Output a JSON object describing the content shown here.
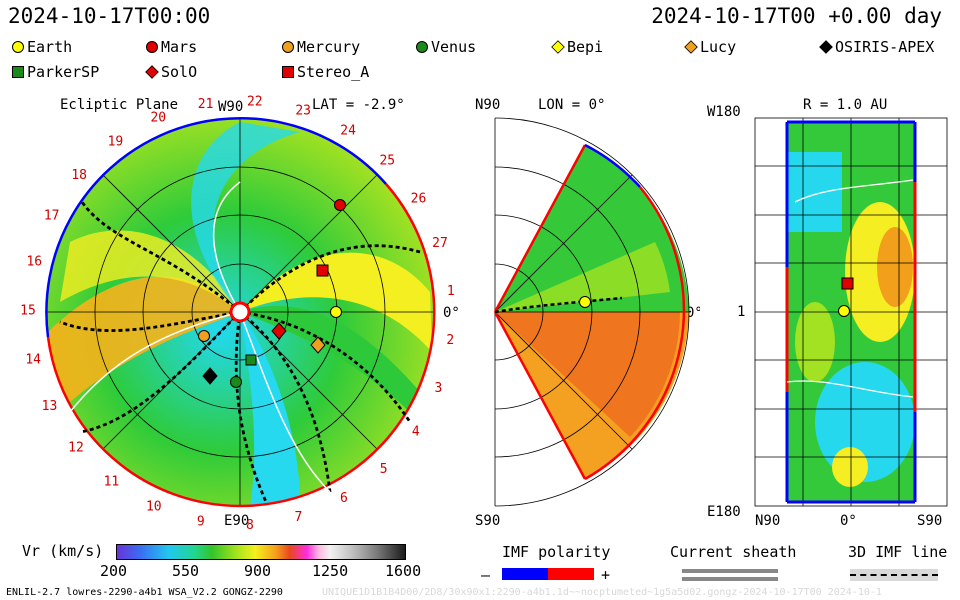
{
  "header": {
    "left_time": "2024-10-17T00:00",
    "right_time": "2024-10-17T00 +0.00 day"
  },
  "legend": [
    {
      "label": "Earth",
      "shape": "circle",
      "color": "#ffff00"
    },
    {
      "label": "Mars",
      "shape": "circle",
      "color": "#e00000"
    },
    {
      "label": "Mercury",
      "shape": "circle",
      "color": "#f0a020"
    },
    {
      "label": "Venus",
      "shape": "circle",
      "color": "#1a8a1a"
    },
    {
      "label": "Bepi",
      "shape": "diamond",
      "color": "#ffff00"
    },
    {
      "label": "Lucy",
      "shape": "diamond",
      "color": "#f0a020"
    },
    {
      "label": "OSIRIS-APEX",
      "shape": "diamond",
      "color": "#000000"
    },
    {
      "label": "ParkerSP",
      "shape": "square",
      "color": "#1a8a1a"
    },
    {
      "label": "SolO",
      "shape": "diamond",
      "color": "#e00000"
    },
    {
      "label": "Stereo_A",
      "shape": "square",
      "color": "#e00000"
    }
  ],
  "ecliptic": {
    "title": "Ecliptic Plane",
    "lat_label": "LAT = -2.9°",
    "top_label": "W90",
    "bottom_label": "E90",
    "right_label": "0°",
    "carrington": [
      "1",
      "2",
      "3",
      "4",
      "5",
      "6",
      "7",
      "8",
      "9",
      "10",
      "11",
      "12",
      "13",
      "14",
      "15",
      "16",
      "17",
      "18",
      "19",
      "20",
      "21",
      "22",
      "23",
      "24",
      "25",
      "26",
      "27"
    ]
  },
  "meridional": {
    "top_label": "N90",
    "bottom_label": "S90",
    "lon_label": "LON = 0°",
    "right_label": "0°"
  },
  "lonlat": {
    "title": "R = 1.0 AU",
    "top_left": "W180",
    "bottom_left": "E180",
    "mid_left": "1",
    "x_left": "N90",
    "x_mid": "0°",
    "x_right": "S90"
  },
  "colorbar": {
    "label": "Vr (km/s)",
    "ticks": [
      "200",
      "550",
      "900",
      "1250",
      "1600"
    ]
  },
  "imf": {
    "title": "IMF polarity",
    "minus": "–",
    "plus": "+",
    "neg_color": "#0000ff",
    "pos_color": "#ff0000"
  },
  "sheath": {
    "title": "Current sheath"
  },
  "imfline": {
    "title": "3D IMF line"
  },
  "footer": {
    "left": "ENLIL-2.7 lowres-2290-a4b1 WSA_V2.2 GONGZ-2290",
    "right": "UNIQUE1D1B1B4D00/2D8/30x90x1:2290-a4b1.1d~~nocptumeted~1g5a5d02.gongz-2024-10-17T00   2024-10-1"
  }
}
